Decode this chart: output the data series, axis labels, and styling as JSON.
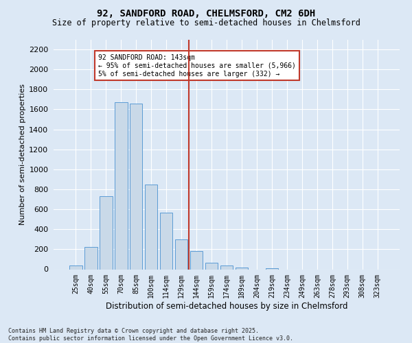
{
  "title": "92, SANDFORD ROAD, CHELMSFORD, CM2 6DH",
  "subtitle": "Size of property relative to semi-detached houses in Chelmsford",
  "xlabel": "Distribution of semi-detached houses by size in Chelmsford",
  "ylabel": "Number of semi-detached properties",
  "footer_line1": "Contains HM Land Registry data © Crown copyright and database right 2025.",
  "footer_line2": "Contains public sector information licensed under the Open Government Licence v3.0.",
  "bar_labels": [
    "25sqm",
    "40sqm",
    "55sqm",
    "70sqm",
    "85sqm",
    "100sqm",
    "114sqm",
    "129sqm",
    "144sqm",
    "159sqm",
    "174sqm",
    "189sqm",
    "204sqm",
    "219sqm",
    "234sqm",
    "249sqm",
    "263sqm",
    "278sqm",
    "293sqm",
    "308sqm",
    "323sqm"
  ],
  "bar_values": [
    40,
    225,
    730,
    1670,
    1660,
    845,
    565,
    300,
    185,
    65,
    35,
    20,
    0,
    10,
    0,
    0,
    0,
    0,
    0,
    0,
    0
  ],
  "bar_color": "#c9d9e8",
  "bar_edge_color": "#5b9bd5",
  "vline_index": 8,
  "vline_color": "#c0392b",
  "annotation_title": "92 SANDFORD ROAD: 143sqm",
  "annotation_line2": "← 95% of semi-detached houses are smaller (5,966)",
  "annotation_line3": "5% of semi-detached houses are larger (332) →",
  "annotation_box_color": "#c0392b",
  "ylim": [
    0,
    2300
  ],
  "yticks": [
    0,
    200,
    400,
    600,
    800,
    1000,
    1200,
    1400,
    1600,
    1800,
    2000,
    2200
  ],
  "background_color": "#dce8f5",
  "plot_bg_color": "#dce8f5",
  "grid_color": "#ffffff"
}
